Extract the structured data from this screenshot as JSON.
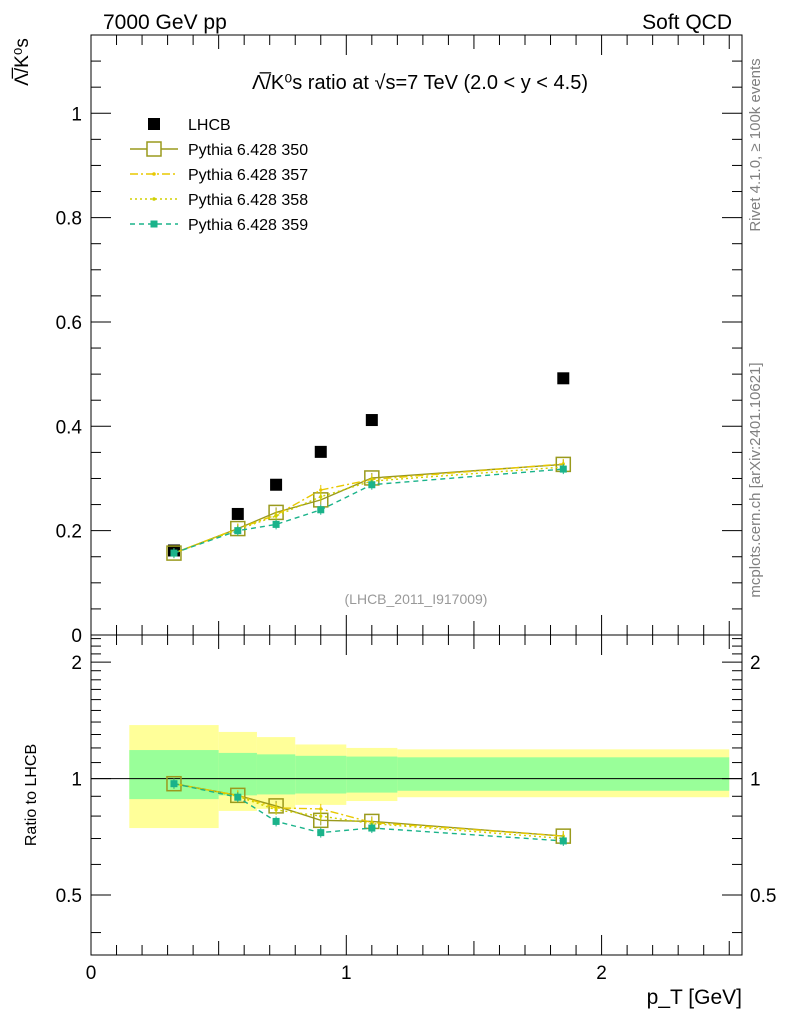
{
  "header": {
    "left": "7000 GeV pp",
    "right": "Soft QCD"
  },
  "side": {
    "rivet": "Rivet 4.1.0, ≥ 100k events",
    "mcplots": "mcplots.cern.ch [arXiv:2401.10621]"
  },
  "chart_data": {
    "type": "scatter",
    "title": "Λ̅/K⁰s ratio at √s=7 TeV (2.0 < y < 4.5)",
    "analysis_label": "(LHCB_2011_I917009)",
    "ylabel": "Λ̅/K⁰s",
    "xlabel": "p_T [GeV]",
    "xlim": [
      0,
      2.55
    ],
    "ylim": [
      0,
      1.15
    ],
    "yticks": [
      0,
      0.2,
      0.4,
      0.6,
      0.8,
      1
    ],
    "ytick_labels": [
      "0",
      "0.2",
      "0.4",
      "0.6",
      "0.8",
      "1"
    ],
    "xticks": [
      0,
      1,
      2
    ],
    "xtick_labels": [
      "0",
      "1",
      "2"
    ],
    "ratio": {
      "ylabel": "Ratio to LHCB",
      "ylim": [
        0.35,
        2.35
      ],
      "yticks": [
        0.5,
        1,
        2
      ],
      "ytick_labels": [
        "0.5",
        "1",
        "2"
      ],
      "bands": [
        {
          "x0": 0.15,
          "x1": 0.5,
          "inner": [
            0.885,
            1.185
          ],
          "outer": [
            0.745,
            1.375
          ]
        },
        {
          "x0": 0.5,
          "x1": 0.65,
          "inner": [
            0.905,
            1.165
          ],
          "outer": [
            0.825,
            1.32
          ]
        },
        {
          "x0": 0.65,
          "x1": 0.8,
          "inner": [
            0.91,
            1.155
          ],
          "outer": [
            0.835,
            1.28
          ]
        },
        {
          "x0": 0.8,
          "x1": 1.0,
          "inner": [
            0.915,
            1.145
          ],
          "outer": [
            0.855,
            1.225
          ]
        },
        {
          "x0": 1.0,
          "x1": 1.2,
          "inner": [
            0.92,
            1.14
          ],
          "outer": [
            0.875,
            1.2
          ]
        },
        {
          "x0": 1.2,
          "x1": 2.5,
          "inner": [
            0.93,
            1.135
          ],
          "outer": [
            0.895,
            1.19
          ]
        }
      ]
    },
    "x": [
      0.325,
      0.575,
      0.725,
      0.9,
      1.1,
      1.85
    ],
    "series": [
      {
        "name": "LHCB",
        "style": "data",
        "color": "#000000",
        "values": [
          0.162,
          0.232,
          0.288,
          0.351,
          0.412,
          0.492
        ],
        "ratio": [
          1,
          1,
          1,
          1,
          1,
          1
        ]
      },
      {
        "name": "Pythia 6.428 350",
        "style": "solid-open-square",
        "color": "#9a9a1d",
        "values": [
          0.157,
          0.204,
          0.235,
          0.259,
          0.301,
          0.327
        ],
        "ratio": [
          0.97,
          0.905,
          0.85,
          0.78,
          0.775,
          0.71
        ]
      },
      {
        "name": "Pythia 6.428 357",
        "style": "dashdot",
        "color": "#e8c800",
        "values": [
          0.157,
          0.204,
          0.23,
          0.278,
          0.298,
          0.328
        ],
        "ratio": [
          0.97,
          0.905,
          0.84,
          0.835,
          0.77,
          0.71
        ]
      },
      {
        "name": "Pythia 6.428 358",
        "style": "dotted",
        "color": "#d0d000",
        "values": [
          0.157,
          0.202,
          0.228,
          0.265,
          0.295,
          0.322
        ],
        "ratio": [
          0.97,
          0.9,
          0.83,
          0.8,
          0.765,
          0.7
        ]
      },
      {
        "name": "Pythia 6.428 359",
        "style": "dashed",
        "color": "#1ab38a",
        "values": [
          0.157,
          0.2,
          0.212,
          0.24,
          0.288,
          0.318
        ],
        "ratio": [
          0.97,
          0.895,
          0.775,
          0.725,
          0.745,
          0.69
        ]
      }
    ]
  }
}
